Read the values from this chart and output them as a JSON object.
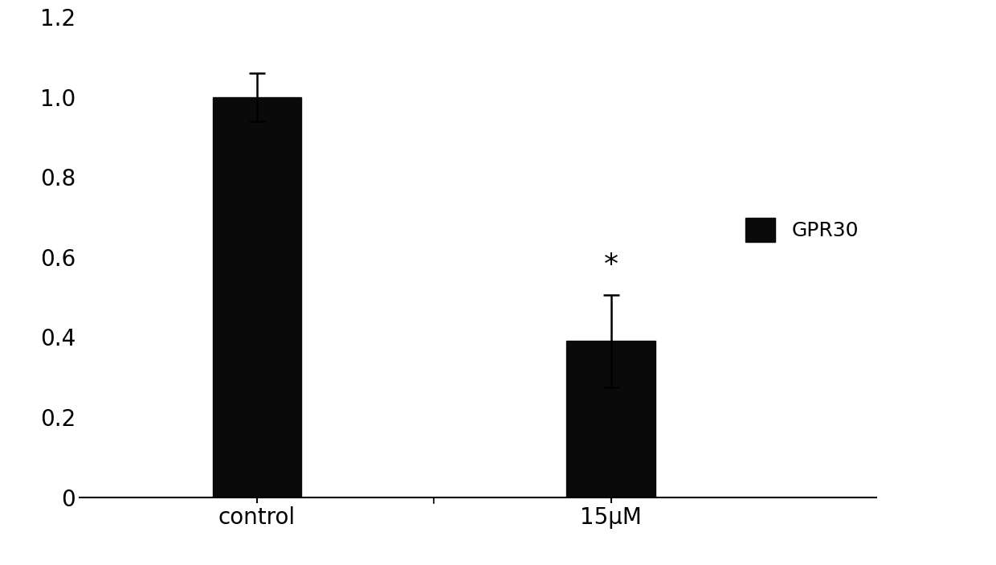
{
  "categories": [
    "control",
    "15μM"
  ],
  "values": [
    1.0,
    0.39
  ],
  "errors": [
    0.06,
    0.115
  ],
  "bar_color": "#0a0a0a",
  "bar_width": 0.5,
  "ylim": [
    0,
    1.2
  ],
  "yticks": [
    0,
    0.2,
    0.4,
    0.6,
    0.8,
    1.0,
    1.2
  ],
  "significance": [
    "",
    "*"
  ],
  "legend_label": "GPR30",
  "legend_color": "#0a0a0a",
  "background_color": "#ffffff",
  "tick_fontsize": 20,
  "legend_fontsize": 18,
  "sig_fontsize": 26,
  "bar_positions": [
    1,
    3
  ],
  "xlim": [
    0,
    4.5
  ]
}
